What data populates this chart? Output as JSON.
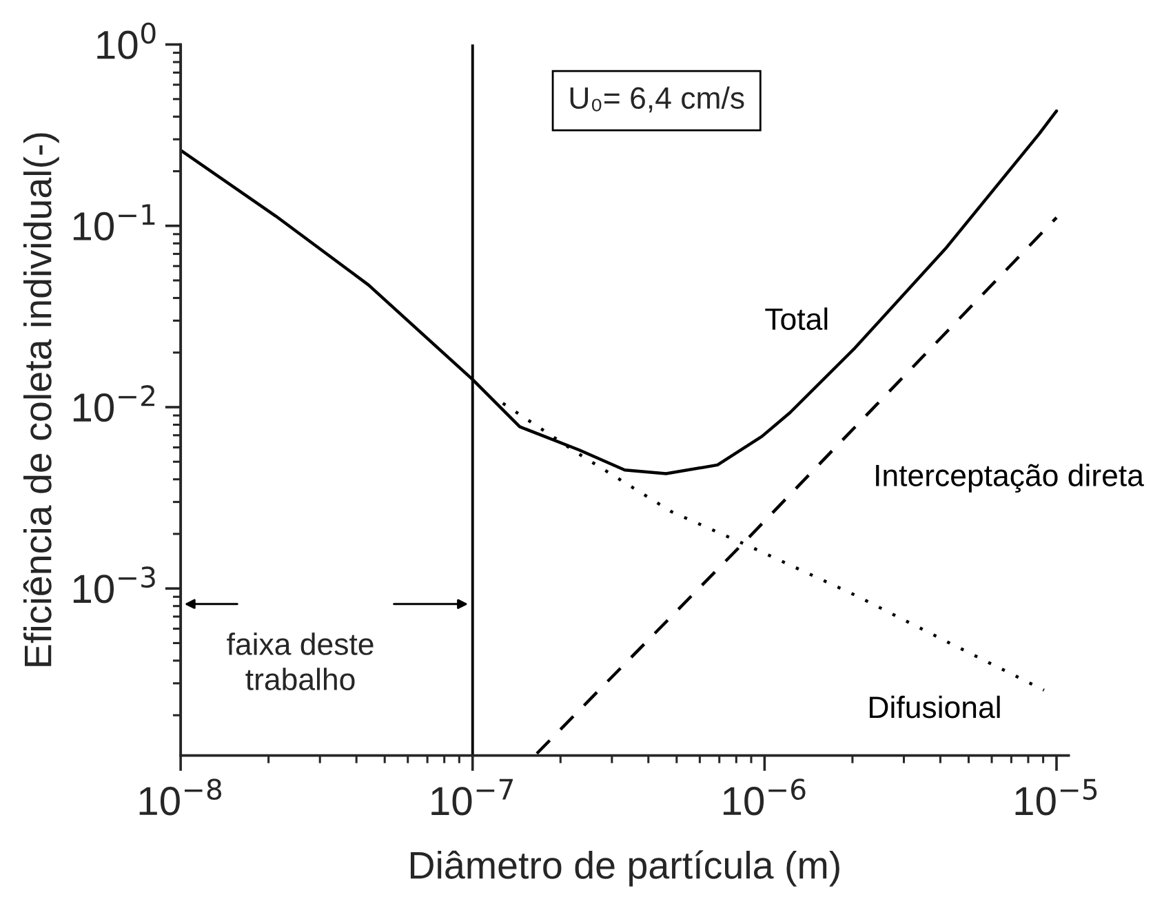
{
  "chart_data": {
    "type": "line",
    "xlabel": "Diâmetro de partícula (m)",
    "ylabel": "Eficiência de coleta individual(-)",
    "log": "xy",
    "grid": false,
    "legend": false,
    "xlim": [
      1e-08,
      1.1e-05
    ],
    "ylim": [
      0.00012,
      1
    ],
    "xticks": [
      {
        "value": 1e-08,
        "label": "10$^{−8}$"
      },
      {
        "value": 1e-07,
        "label": "10$^{−7}$"
      },
      {
        "value": 1e-06,
        "label": "10$^{−6}$"
      },
      {
        "value": 1e-05,
        "label": "10$^{−5}$"
      }
    ],
    "yticks": [
      {
        "value": 0.001,
        "label": "10$^{−3}$"
      },
      {
        "value": 0.01,
        "label": "10$^{−2}$"
      },
      {
        "value": 0.1,
        "label": "10$^{−1}$"
      },
      {
        "value": 1,
        "label": "10$^{0}$"
      }
    ],
    "series": [
      {
        "name": "Total",
        "color": "#000000",
        "line_style": "solid",
        "x": [
          1e-08,
          2.12e-08,
          4.4e-08,
          1e-07,
          1.45e-07,
          2.32e-07,
          3.32e-07,
          4.6e-07,
          6.9e-07,
          9.8e-07,
          1.22e-06,
          2.04e-06,
          4.2e-06,
          8.7e-06,
          1e-05
        ],
        "values": [
          0.261,
          0.113,
          0.0472,
          0.0142,
          0.0078,
          0.0058,
          0.0045,
          0.0043,
          0.0048,
          0.0069,
          0.0093,
          0.0212,
          0.076,
          0.32,
          0.43
        ]
      },
      {
        "name": "Interceptação direta",
        "color": "#000000",
        "line_style": "dashed",
        "x": [
          1.66e-07,
          8.8e-07,
          1e-05
        ],
        "values": [
          0.000123,
          0.0019,
          0.111
        ]
      },
      {
        "name": "Difusional",
        "color": "#000000",
        "line_style": "dotted",
        "x": [
          1.27e-07,
          2.32e-07,
          4.8e-07,
          8.8e-07,
          2.04e-06,
          4.2e-06,
          9.06e-06
        ],
        "values": [
          0.0105,
          0.0055,
          0.00265,
          0.00172,
          0.00092,
          0.00051,
          0.000275
        ]
      }
    ],
    "ref_lines": [
      {
        "axis": "x",
        "value": 1e-07,
        "color": "#000000",
        "line_style": "solid"
      }
    ],
    "annotations": [
      "U₀= 6,4 cm/s",
      "faixa deste\ntrabalho"
    ]
  }
}
